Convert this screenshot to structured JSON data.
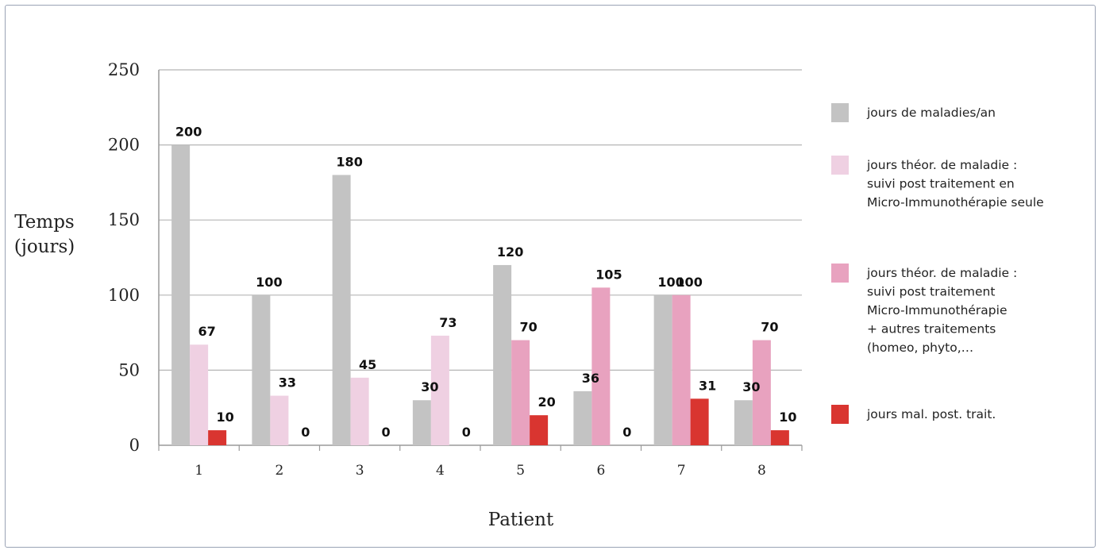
{
  "chart_data": {
    "type": "bar",
    "title": "",
    "xlabel": "Patient",
    "ylabel_lines": [
      "Temps",
      "(jours)"
    ],
    "ylim": [
      0,
      250
    ],
    "yticks": [
      "0",
      "50",
      "100",
      "150",
      "200",
      "250"
    ],
    "grid": true,
    "legend_position": "right",
    "categories": [
      "1",
      "2",
      "3",
      "4",
      "5",
      "6",
      "7",
      "8"
    ],
    "series": [
      {
        "name_lines": [
          "jours de maladies/an"
        ],
        "color": "#c3c3c3",
        "values": [
          200,
          100,
          180,
          30,
          120,
          36,
          100,
          30
        ]
      },
      {
        "name_lines": [
          "jours théor. de maladie :",
          "suivi post traitement en",
          "Micro-Immunothérapie seule"
        ],
        "color": "#efd0e2",
        "values": [
          67,
          33,
          45,
          73,
          null,
          null,
          null,
          null
        ]
      },
      {
        "name_lines": [
          "jours théor. de maladie :",
          "suivi post traitement",
          "Micro-Immunothérapie",
          "+ autres traitements",
          "(homeo, phyto,…"
        ],
        "color": "#e8a2bf",
        "values": [
          null,
          null,
          null,
          null,
          70,
          105,
          100,
          70
        ]
      },
      {
        "name_lines": [
          "jours mal. post. trait."
        ],
        "color": "#d93530",
        "values": [
          10,
          0,
          0,
          0,
          20,
          0,
          31,
          10
        ]
      }
    ]
  }
}
